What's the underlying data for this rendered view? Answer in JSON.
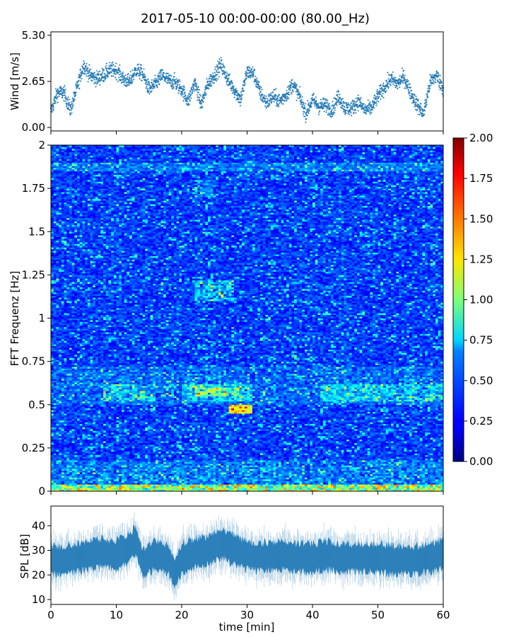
{
  "title": "2017-05-10 00:00-00:00 (80.00_Hz)",
  "chart_data": [
    {
      "type": "scatter",
      "name": "wind",
      "ylabel": "Wind [m/s]",
      "yticks": [
        "5.30",
        "2.65",
        "0.00"
      ],
      "ytick_values": [
        5.3,
        2.65,
        0.0
      ],
      "ylim": [
        -0.2,
        5.5
      ],
      "xlim": [
        0,
        60
      ],
      "color": "#1f77b4",
      "trend": {
        "x": [
          0,
          1,
          2,
          3,
          4,
          5,
          6,
          7,
          8,
          9,
          10,
          11,
          12,
          13,
          14,
          15,
          16,
          17,
          18,
          19,
          20,
          21,
          22,
          23,
          24,
          25,
          26,
          27,
          28,
          29,
          30,
          31,
          32,
          33,
          34,
          35,
          36,
          37,
          38,
          39,
          40,
          41,
          42,
          43,
          44,
          45,
          46,
          47,
          48,
          49,
          50,
          51,
          52,
          53,
          54,
          55,
          56,
          57,
          58,
          59,
          60
        ],
        "y": [
          0.9,
          2.0,
          2.0,
          1.0,
          2.3,
          3.6,
          3.0,
          2.8,
          3.0,
          3.3,
          3.3,
          2.8,
          2.6,
          3.3,
          3.1,
          2.2,
          2.5,
          3.0,
          2.7,
          2.6,
          2.2,
          1.5,
          2.6,
          1.3,
          2.5,
          3.0,
          3.6,
          2.8,
          2.2,
          1.6,
          3.2,
          3.1,
          2.0,
          1.4,
          1.8,
          1.5,
          1.9,
          2.5,
          1.8,
          0.8,
          1.6,
          1.2,
          1.3,
          1.0,
          1.8,
          1.1,
          1.1,
          1.5,
          1.0,
          1.1,
          1.8,
          2.3,
          2.8,
          2.5,
          2.9,
          2.0,
          1.3,
          0.8,
          2.6,
          3.0,
          2.2
        ]
      }
    },
    {
      "type": "heatmap",
      "name": "spectrogram",
      "ylabel": "FFT Frequenz [Hz]",
      "yticks": [
        "2",
        "1.75",
        "1.5",
        "1.25",
        "1",
        "0.75",
        "0.5",
        "0.25",
        "0"
      ],
      "ytick_values": [
        2,
        1.75,
        1.5,
        1.25,
        1,
        0.75,
        0.5,
        0.25,
        0
      ],
      "ylim": [
        0,
        2
      ],
      "xlim": [
        0,
        60
      ],
      "colormap": "jet",
      "colorbar": {
        "ticks": [
          "2.00",
          "1.75",
          "1.50",
          "1.25",
          "1.00",
          "0.75",
          "0.50",
          "0.25",
          "0.00"
        ],
        "tick_values": [
          2.0,
          1.75,
          1.5,
          1.25,
          1.0,
          0.75,
          0.5,
          0.25,
          0.0
        ],
        "range": [
          0,
          2
        ]
      }
    },
    {
      "type": "area",
      "name": "spl",
      "xlabel": "time [min]",
      "ylabel": "SPL [dB]",
      "xticks": [
        "0",
        "10",
        "20",
        "30",
        "40",
        "50",
        "60"
      ],
      "xtick_values": [
        0,
        10,
        20,
        30,
        40,
        50,
        60
      ],
      "yticks": [
        "40",
        "30",
        "20",
        "10"
      ],
      "ytick_values": [
        40,
        30,
        20,
        10
      ],
      "ylim": [
        8,
        48
      ],
      "xlim": [
        0,
        60
      ],
      "color": "#1f77b4",
      "trend": {
        "x": [
          0,
          2,
          4,
          6,
          8,
          10,
          12,
          13,
          14,
          16,
          18,
          19,
          20,
          22,
          24,
          26,
          28,
          30,
          32,
          34,
          36,
          38,
          40,
          42,
          44,
          46,
          48,
          50,
          52,
          54,
          56,
          58,
          60
        ],
        "y": [
          26,
          26,
          27,
          28,
          29,
          28,
          31,
          34,
          25,
          28,
          26,
          20,
          27,
          29,
          30,
          33,
          30,
          28,
          27,
          28,
          28,
          27,
          27,
          28,
          27,
          27,
          27,
          27,
          26,
          26,
          26,
          27,
          28
        ]
      }
    }
  ]
}
